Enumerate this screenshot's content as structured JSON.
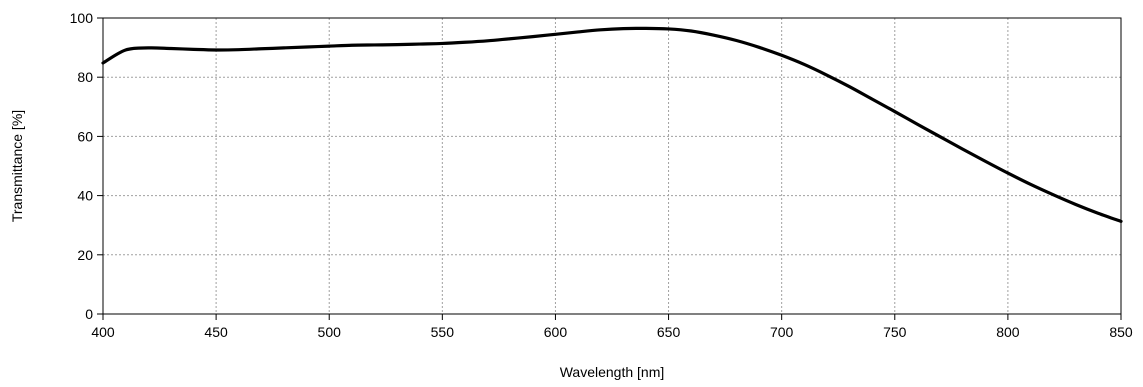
{
  "chart_data": {
    "type": "line",
    "title": "",
    "xlabel": "Wavelength [nm]",
    "ylabel": "Transmittance [%]",
    "xlim": [
      400,
      850
    ],
    "ylim": [
      0,
      100
    ],
    "x_ticks": [
      400,
      450,
      500,
      550,
      600,
      650,
      700,
      750,
      800,
      850
    ],
    "y_ticks": [
      0,
      20,
      40,
      60,
      80,
      100
    ],
    "x_tick_labels": [
      "400",
      "450",
      "500",
      "550",
      "600",
      "650",
      "700",
      "750",
      "800",
      "850"
    ],
    "y_tick_labels": [
      "0",
      "20",
      "40",
      "60",
      "80",
      "100"
    ],
    "grid": true,
    "line_color": "#000000",
    "grid_color": "#a0a0a0",
    "series": [
      {
        "x": [
          400,
          410,
          420,
          430,
          440,
          450,
          460,
          470,
          480,
          490,
          500,
          510,
          520,
          530,
          540,
          550,
          560,
          570,
          580,
          590,
          600,
          610,
          620,
          630,
          640,
          650,
          660,
          670,
          680,
          690,
          700,
          710,
          720,
          730,
          740,
          750,
          760,
          770,
          780,
          790,
          800,
          810,
          820,
          830,
          840,
          850
        ],
        "y": [
          84.8,
          89.2,
          89.9,
          89.7,
          89.4,
          89.2,
          89.3,
          89.6,
          89.9,
          90.2,
          90.5,
          90.8,
          90.9,
          91.0,
          91.2,
          91.4,
          91.8,
          92.3,
          93.0,
          93.7,
          94.5,
          95.3,
          96.0,
          96.4,
          96.5,
          96.3,
          95.6,
          94.2,
          92.4,
          90.1,
          87.4,
          84.3,
          80.7,
          76.8,
          72.6,
          68.4,
          64.1,
          59.9,
          55.7,
          51.6,
          47.6,
          43.8,
          40.3,
          37.0,
          34.0,
          31.3
        ]
      }
    ]
  }
}
